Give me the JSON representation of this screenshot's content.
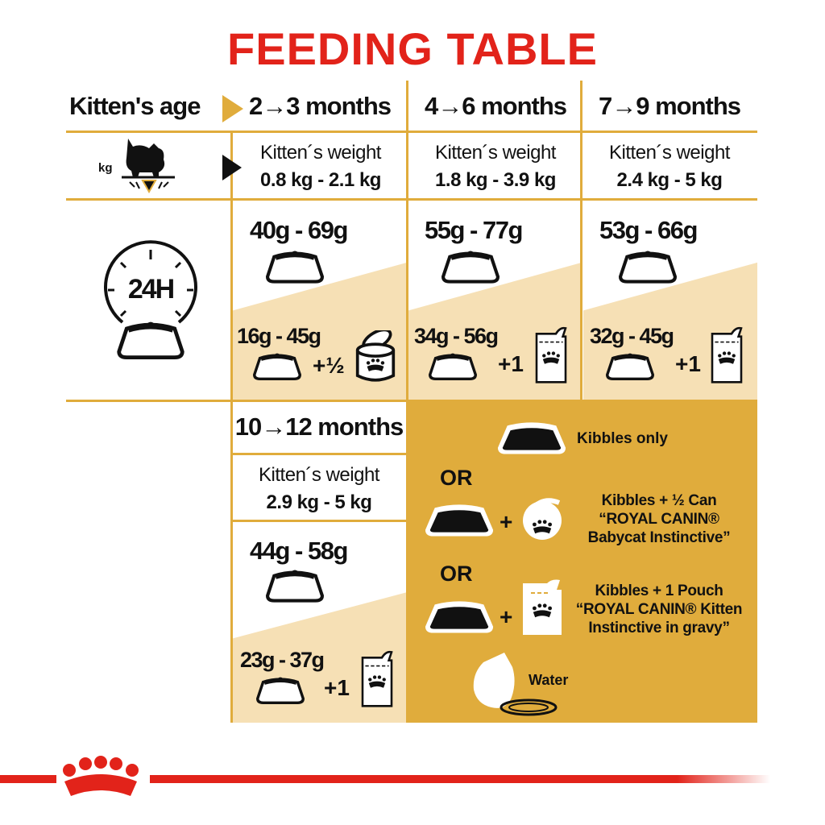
{
  "title": "FEEDING TABLE",
  "header": {
    "age_label": "Kitten's age",
    "columns": [
      "2→3 months",
      "4→6 months",
      "7→9 months"
    ]
  },
  "weight_row": {
    "kg_label": "kg",
    "weight_label": "Kitten´s weight",
    "values": [
      "0.8 kg - 2.1 kg",
      "1.8 kg - 3.9 kg",
      "2.4 kg - 5 kg"
    ]
  },
  "daily_icon_label": "24H",
  "kibbles_only": [
    "40g - 69g",
    "55g - 77g",
    "53g - 66g"
  ],
  "mixed": [
    {
      "kibbles": "16g - 45g",
      "wet": "+½"
    },
    {
      "kibbles": "34g - 56g",
      "wet": "+1"
    },
    {
      "kibbles": "32g - 45g",
      "wet": "+1"
    }
  ],
  "last_column": {
    "age": "10→12 months",
    "weight_label": "Kitten´s weight",
    "weight": "2.9 kg - 5 kg",
    "kibbles_only": "44g - 58g",
    "mixed_kibbles": "23g - 37g",
    "mixed_wet": "+1"
  },
  "legend": {
    "kibbles_only": "Kibbles only",
    "or": "OR",
    "plus": "+",
    "can_option": [
      "Kibbles + ½ Can",
      "“ROYAL CANIN®",
      "Babycat Instinctive”"
    ],
    "pouch_option": [
      "Kibbles + 1 Pouch",
      "“ROYAL CANIN® Kitten",
      "Instinctive in gravy”"
    ],
    "water": "Water"
  },
  "colors": {
    "title_red": "#e2231a",
    "gold": "#e0ac3c",
    "beige": "#f6e0b5"
  },
  "icons": [
    "kitten-on-scale-icon",
    "clock-24h-icon",
    "bowl-icon",
    "can-icon",
    "pouch-icon",
    "cat-drinking-icon",
    "crown-logo-icon"
  ]
}
